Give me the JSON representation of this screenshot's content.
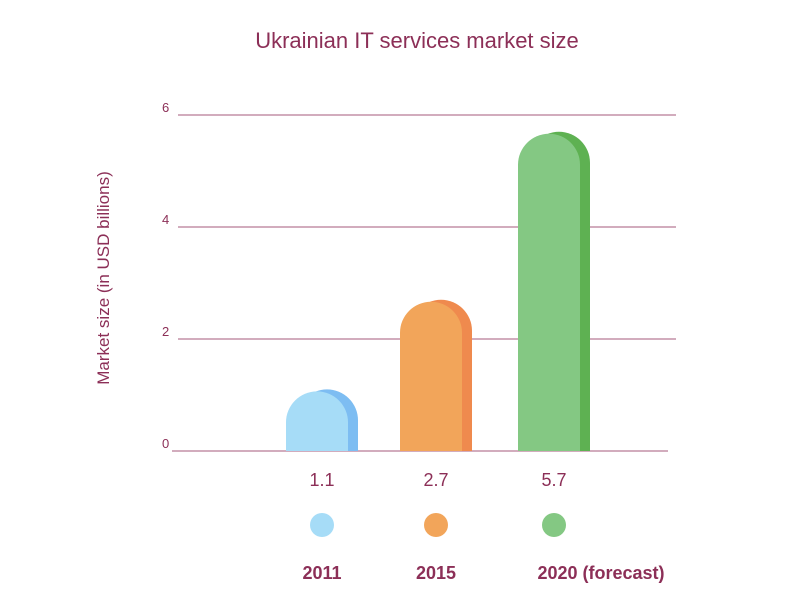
{
  "chart_data": {
    "type": "bar",
    "title": "Ukrainian IT services market size",
    "ylabel": "Market size (in USD billions)",
    "xlabel": "",
    "categories": [
      "2011",
      "2015",
      "2020 (forecast)"
    ],
    "values": [
      1.1,
      2.7,
      5.7
    ],
    "value_labels": [
      "1.1",
      "2.7",
      "5.7"
    ],
    "ylim": [
      0,
      6
    ],
    "yticks": [
      "0",
      "2",
      "4",
      "6"
    ],
    "grid": true,
    "colors": {
      "bars": [
        "#a6dcf7",
        "#f2a55a",
        "#84c883"
      ],
      "bar_shadows": [
        "#7dbdf2",
        "#ef8a4e",
        "#5eb152"
      ],
      "text": "#8c2f57",
      "grid": "#a65a7b"
    }
  }
}
